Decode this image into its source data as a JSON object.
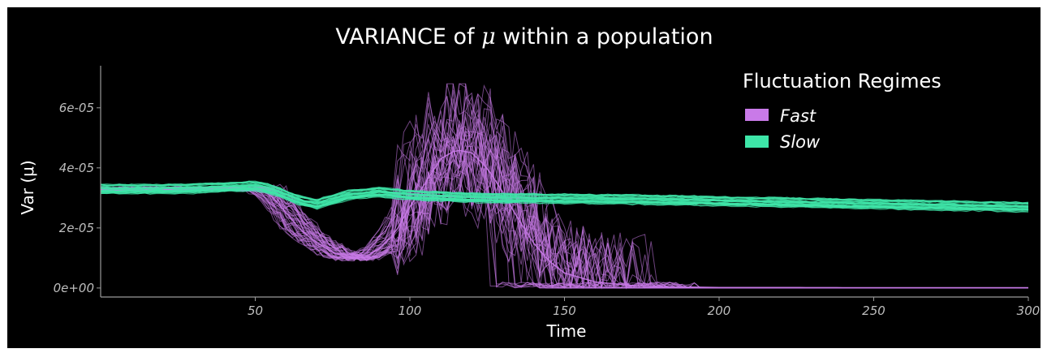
{
  "chart_data": {
    "type": "line",
    "title_prefix": "VARIANCE of ",
    "title_symbol": "μ",
    "title_suffix": " within a population",
    "xlabel": "Time",
    "ylabel": "Var (μ)",
    "xlim": [
      0,
      300
    ],
    "ylim": [
      -3e-06,
      7.4e-05
    ],
    "x_ticks": [
      50,
      100,
      150,
      200,
      250,
      300
    ],
    "y_ticks": [
      0,
      2e-05,
      4e-05,
      6e-05
    ],
    "y_tick_labels": [
      "0e+00",
      "2e-05",
      "4e-05",
      "6e-05"
    ],
    "grid": false,
    "legend": {
      "title": "Fluctuation Regimes",
      "position": "top-right",
      "items": [
        {
          "label": "Fast",
          "color": "#c97ae8"
        },
        {
          "label": "Slow",
          "color": "#3ee6a8"
        }
      ]
    },
    "series": [
      {
        "name": "Fast",
        "color": "#c97ae8",
        "x": [
          0,
          20,
          40,
          50,
          55,
          60,
          65,
          70,
          75,
          80,
          85,
          90,
          95,
          100,
          105,
          110,
          115,
          120,
          125,
          130,
          135,
          140,
          145,
          150,
          160,
          175,
          200,
          250,
          300
        ],
        "y": [
          3.3e-05,
          3.3e-05,
          3.3e-05,
          3.3e-05,
          3.1e-05,
          2.5e-05,
          1.9e-05,
          1.5e-05,
          1.2e-05,
          1e-05,
          1e-05,
          1.3e-05,
          1.8e-05,
          2.7e-05,
          3.5e-05,
          4.3e-05,
          4.6e-05,
          4.5e-05,
          4e-05,
          3.2e-05,
          2.3e-05,
          1.5e-05,
          9e-06,
          5e-06,
          2e-06,
          5e-07,
          2e-07,
          1e-07,
          1e-07
        ],
        "peak_run_max": 6.8e-05
      },
      {
        "name": "Slow",
        "color": "#3ee6a8",
        "x": [
          0,
          25,
          50,
          55,
          60,
          65,
          70,
          80,
          90,
          100,
          110,
          125,
          150,
          175,
          200,
          225,
          250,
          275,
          300
        ],
        "y": [
          3.3e-05,
          3.3e-05,
          3.4e-05,
          3.3e-05,
          3.1e-05,
          2.9e-05,
          2.8e-05,
          3.1e-05,
          3.2e-05,
          3.1e-05,
          3.05e-05,
          3e-05,
          2.98e-05,
          2.95e-05,
          2.9e-05,
          2.85e-05,
          2.8e-05,
          2.75e-05,
          2.7e-05
        ]
      }
    ]
  }
}
